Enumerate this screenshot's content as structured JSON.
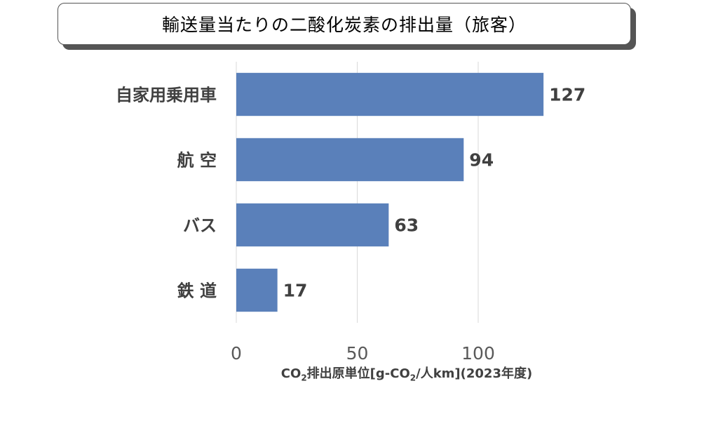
{
  "title": "輸送量当たりの二酸化炭素の排出量（旅客）",
  "chart_data": {
    "type": "bar",
    "orientation": "horizontal",
    "categories": [
      "自家用乗用車",
      "航 空",
      "バス",
      "鉄 道"
    ],
    "values": [
      127,
      94,
      63,
      17
    ],
    "xlabel_parts": {
      "pre": "CO",
      "sub1": "2",
      "mid": "排出原単位[g-CO",
      "sub2": "2",
      "post": "/人km](2023年度)"
    },
    "xlim": [
      0,
      135
    ],
    "xticks": [
      0,
      50,
      100
    ],
    "grid": true,
    "bar_color": "#5a80ba",
    "grid_color": "#d9d9d9"
  }
}
